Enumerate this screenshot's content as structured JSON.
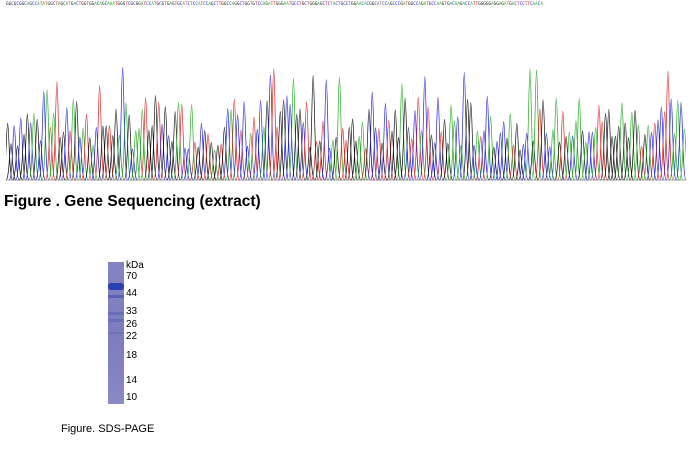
{
  "sequence": {
    "bases": "GGCGCGGCAGCCATATGGCTAGCATGACTGGTGGACAGCAAATGGGTCGCGGATCCATGCGTGAGTGCATCTCCATCCAGCTTGGCCAGGCTGGTGTCCAGATTGGGAATGCCTGCTGGGAGCTCTACTGCCTGGAACACGGCATCCAGCCCGATGGCCAGATGCCAAGTGACAAGACCATTGGGGGAGGAGATGACTCCTTCAACA",
    "base_colors": {
      "A": "#22aa22",
      "C": "#2020e0",
      "G": "#111111",
      "T": "#e02020"
    }
  },
  "figure1": {
    "caption": "Figure . Gene Sequencing (extract)"
  },
  "gel": {
    "unit": "kDa",
    "markers": [
      {
        "label": "70",
        "kda": 70
      },
      {
        "label": "44",
        "kda": 44
      },
      {
        "label": "33",
        "kda": 33
      },
      {
        "label": "26",
        "kda": 26
      },
      {
        "label": "22",
        "kda": 22
      },
      {
        "label": "18",
        "kda": 18
      },
      {
        "label": "14",
        "kda": 14
      },
      {
        "label": "10",
        "kda": 10
      }
    ],
    "lane_color": "#7f7ebf",
    "band_color": "#2a3fb0"
  },
  "figure2": {
    "caption": "Figure. SDS-PAGE"
  }
}
